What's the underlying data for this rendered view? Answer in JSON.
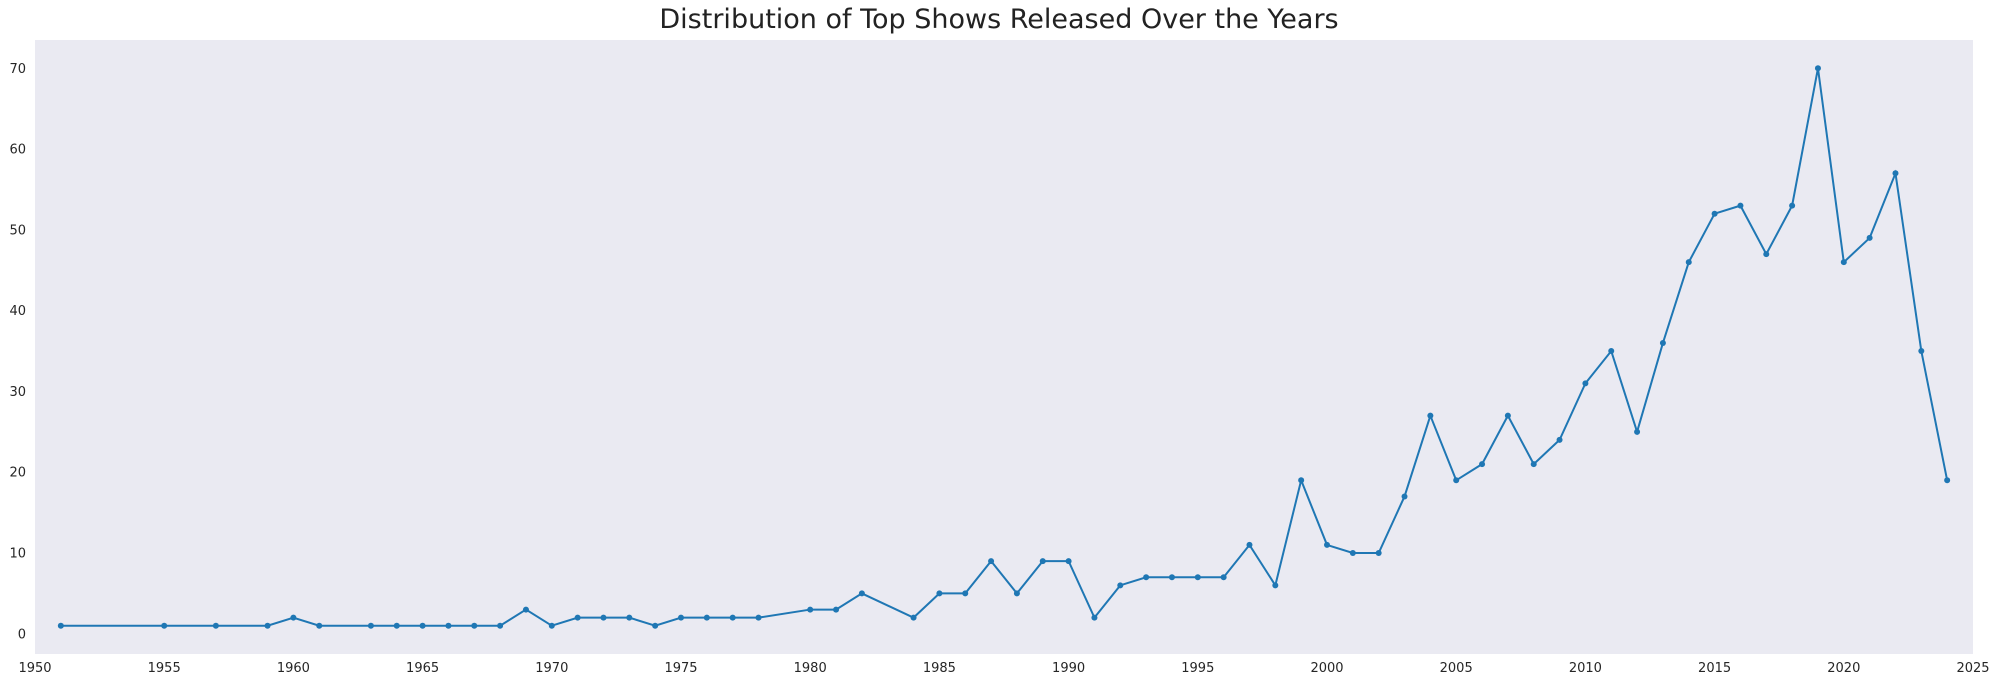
{
  "chart_data": {
    "type": "line",
    "title": "Distribution of Top Shows Released Over the Years",
    "xlabel": "",
    "ylabel": "",
    "xlim": [
      1950,
      2025
    ],
    "ylim": [
      -2.5,
      73.5
    ],
    "x_ticks": [
      1950,
      1955,
      1960,
      1965,
      1970,
      1975,
      1980,
      1985,
      1990,
      1995,
      2000,
      2005,
      2010,
      2015,
      2020,
      2025
    ],
    "y_ticks": [
      0,
      10,
      20,
      30,
      40,
      50,
      60,
      70
    ],
    "grid": false,
    "legend": "none",
    "colors": {
      "line": "#1f77b4",
      "plot_background": "#eaeaf2",
      "figure_background": "#ffffff"
    },
    "series": [
      {
        "x": [
          1951,
          1955,
          1957,
          1959,
          1960,
          1961,
          1963,
          1964,
          1965,
          1966,
          1967,
          1968,
          1969,
          1970,
          1971,
          1972,
          1973,
          1974,
          1975,
          1976,
          1977,
          1978,
          1980,
          1981,
          1982,
          1984,
          1985,
          1986,
          1987,
          1988,
          1989,
          1990,
          1991,
          1992,
          1993,
          1994,
          1995,
          1996,
          1997,
          1998,
          1999,
          2000,
          2001,
          2002,
          2003,
          2004,
          2005,
          2006,
          2007,
          2008,
          2009,
          2010,
          2011,
          2012,
          2013,
          2014,
          2015,
          2016,
          2017,
          2018,
          2019,
          2020,
          2021,
          2022,
          2023,
          2024
        ],
        "y": [
          1,
          1,
          1,
          1,
          2,
          1,
          1,
          1,
          1,
          1,
          1,
          1,
          3,
          1,
          2,
          2,
          2,
          1,
          2,
          2,
          2,
          2,
          3,
          3,
          5,
          2,
          5,
          5,
          9,
          5,
          9,
          9,
          2,
          6,
          7,
          7,
          7,
          7,
          11,
          6,
          19,
          11,
          10,
          10,
          17,
          27,
          19,
          21,
          27,
          21,
          24,
          31,
          35,
          25,
          36,
          46,
          52,
          53,
          47,
          53,
          70,
          46,
          49,
          57,
          35,
          19
        ]
      }
    ]
  }
}
